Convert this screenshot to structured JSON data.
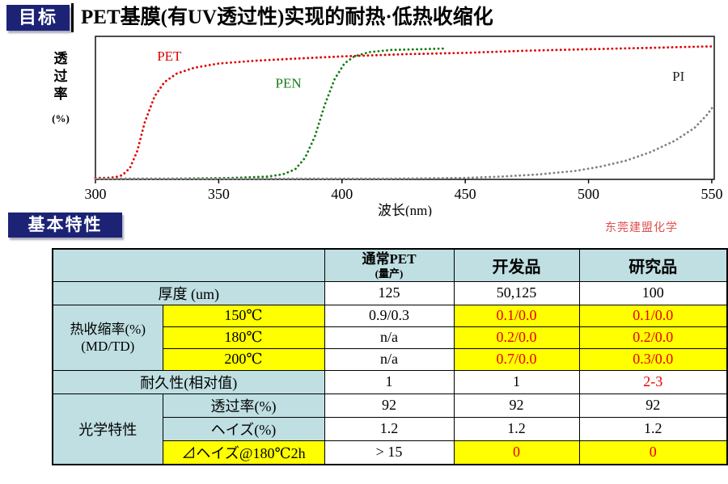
{
  "header": {
    "goal_badge": "目标",
    "title": "PET基膜(有UV透过性)实现的耐热·低热收缩化"
  },
  "section": {
    "basic_badge": "基本特性",
    "company": "东莞建盟化学"
  },
  "chart_data": {
    "type": "line",
    "title": "",
    "xlabel": "波长(nm)",
    "ylabel": "透过率",
    "ylabel_unit": "(%)",
    "xlim": [
      300,
      551
    ],
    "ylim": [
      0,
      100
    ],
    "x_ticks": [
      300,
      350,
      400,
      450,
      500,
      550
    ],
    "grid": false,
    "legend_position": "inline-labels",
    "series": [
      {
        "name": "PET",
        "color": "#e00000",
        "style": "dotted",
        "label_pos": {
          "x": 325,
          "y": 83
        },
        "x": [
          300,
          304,
          308,
          311,
          314,
          317,
          320,
          324,
          328,
          333,
          340,
          350,
          365,
          382,
          400,
          425,
          450,
          475,
          500,
          525,
          545,
          551
        ],
        "y": [
          1,
          1,
          1.5,
          3,
          8,
          20,
          40,
          58,
          68,
          74,
          78,
          81,
          83,
          84.5,
          86,
          87.5,
          88.5,
          90,
          91,
          92,
          92.8,
          93
        ]
      },
      {
        "name": "PEN",
        "color": "#117a11",
        "style": "dotted",
        "label_pos": {
          "x": 373,
          "y": 64
        },
        "x": [
          300,
          330,
          355,
          370,
          376,
          381,
          385,
          389,
          393,
          397,
          401,
          405,
          411,
          420,
          432,
          442
        ],
        "y": [
          0.5,
          0.5,
          1,
          2,
          3.5,
          7,
          15,
          30,
          52,
          70,
          81,
          86,
          89,
          90.5,
          91,
          91.5
        ]
      },
      {
        "name": "PI",
        "color": "#808080",
        "label_color": "#222222",
        "style": "dotted",
        "label_pos": {
          "x": 534,
          "y": 69
        },
        "x": [
          300,
          360,
          420,
          450,
          465,
          480,
          495,
          505,
          515,
          525,
          535,
          543,
          548,
          551
        ],
        "y": [
          0.5,
          0.5,
          0.5,
          1,
          2,
          3.5,
          6,
          9,
          13,
          19,
          27,
          36,
          45,
          52
        ]
      }
    ]
  },
  "table": {
    "rows": [
      {
        "name": "header-row",
        "header": true,
        "cells": [
          {
            "text": "",
            "colspan": 2,
            "bg": "blue",
            "name": "corner-cell"
          },
          {
            "text": "通常PET",
            "sub": "(量产)",
            "bg": "blue",
            "name": "col-header-normal-pet"
          },
          {
            "text": "开发品",
            "bg": "blue",
            "name": "col-header-developed"
          },
          {
            "text": "研究品",
            "bg": "blue",
            "name": "col-header-research"
          }
        ]
      },
      {
        "name": "thickness-row",
        "cells": [
          {
            "text": "厚度 (um)",
            "colspan": 2,
            "bg": "blue",
            "name": "row-label-thickness"
          },
          {
            "text": "125",
            "name": "thickness-normal-pet"
          },
          {
            "text": "50,125",
            "name": "thickness-developed"
          },
          {
            "text": "100",
            "name": "thickness-research"
          }
        ]
      },
      {
        "name": "shrinkage-150c-row",
        "cells": [
          {
            "lines": [
              "热收缩率(%)",
              "(MD/TD)"
            ],
            "rowspan": 3,
            "bg": "blue",
            "name": "row-label-heat-shrinkage"
          },
          {
            "text": "150℃",
            "bg": "yellow",
            "name": "sub-label-150c"
          },
          {
            "text": "0.9/0.3",
            "name": "shrinkage-150-normal-pet"
          },
          {
            "text": "0.1/0.0",
            "bg": "yellow",
            "color": "red",
            "name": "shrinkage-150-developed"
          },
          {
            "text": "0.1/0.0",
            "bg": "yellow",
            "color": "red",
            "name": "shrinkage-150-research"
          }
        ]
      },
      {
        "name": "shrinkage-180c-row",
        "cells": [
          {
            "text": "180℃",
            "bg": "yellow",
            "name": "sub-label-180c"
          },
          {
            "text": "n/a",
            "name": "shrinkage-180-normal-pet"
          },
          {
            "text": "0.2/0.0",
            "bg": "yellow",
            "color": "red",
            "name": "shrinkage-180-developed"
          },
          {
            "text": "0.2/0.0",
            "bg": "yellow",
            "color": "red",
            "name": "shrinkage-180-research"
          }
        ]
      },
      {
        "name": "shrinkage-200c-row",
        "cells": [
          {
            "text": "200℃",
            "bg": "yellow",
            "name": "sub-label-200c"
          },
          {
            "text": "n/a",
            "name": "shrinkage-200-normal-pet"
          },
          {
            "text": "0.7/0.0",
            "bg": "yellow",
            "color": "red",
            "name": "shrinkage-200-developed"
          },
          {
            "text": "0.3/0.0",
            "bg": "yellow",
            "color": "red",
            "name": "shrinkage-200-research"
          }
        ]
      },
      {
        "name": "durability-row",
        "cells": [
          {
            "text": "耐久性(相对值)",
            "colspan": 2,
            "bg": "blue",
            "name": "row-label-durability"
          },
          {
            "text": "1",
            "name": "durability-normal-pet"
          },
          {
            "text": "1",
            "name": "durability-developed"
          },
          {
            "text": "2-3",
            "color": "red",
            "name": "durability-research"
          }
        ]
      },
      {
        "name": "optical-transmittance-row",
        "cells": [
          {
            "text": "光学特性",
            "rowspan": 3,
            "bg": "blue",
            "name": "row-label-optical"
          },
          {
            "text": "透过率(%)",
            "bg": "blue",
            "name": "sub-label-transmittance"
          },
          {
            "text": "92",
            "name": "transmittance-normal-pet"
          },
          {
            "text": "92",
            "name": "transmittance-developed"
          },
          {
            "text": "92",
            "name": "transmittance-research"
          }
        ]
      },
      {
        "name": "optical-haze-row",
        "cells": [
          {
            "text": "ヘイズ(%)",
            "bg": "blue",
            "name": "sub-label-haze"
          },
          {
            "text": "1.2",
            "name": "haze-normal-pet"
          },
          {
            "text": "1.2",
            "name": "haze-developed"
          },
          {
            "text": "1.2",
            "name": "haze-research"
          }
        ]
      },
      {
        "name": "optical-delta-haze-row",
        "cells": [
          {
            "text": "⊿ヘイズ@180℃2h",
            "bg": "yellow",
            "name": "sub-label-delta-haze"
          },
          {
            "text": "> 15",
            "name": "delta-haze-normal-pet"
          },
          {
            "text": "0",
            "bg": "yellow",
            "color": "red",
            "name": "delta-haze-developed"
          },
          {
            "text": "0",
            "bg": "yellow",
            "color": "red",
            "name": "delta-haze-research"
          }
        ]
      }
    ]
  }
}
